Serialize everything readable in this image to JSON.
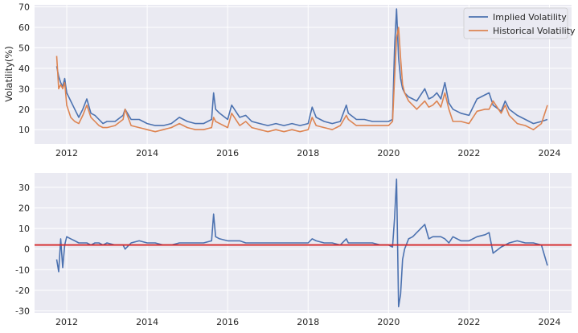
{
  "chart_data": [
    {
      "type": "line",
      "ylabel": "Volatility(%)",
      "xlabel": "",
      "xlim": [
        2011.2,
        2024.55
      ],
      "ylim": [
        3,
        71
      ],
      "xticks": [
        2012,
        2014,
        2016,
        2018,
        2020,
        2022,
        2024
      ],
      "yticks": [
        10,
        20,
        30,
        40,
        50,
        60,
        70
      ],
      "grid": true,
      "legend": "top-right",
      "series": [
        {
          "name": "Implied Volatility",
          "color": "#4c72b0",
          "x": [
            2011.75,
            2011.8,
            2011.85,
            2011.9,
            2011.95,
            2012.0,
            2012.1,
            2012.2,
            2012.3,
            2012.4,
            2012.5,
            2012.6,
            2012.7,
            2012.8,
            2012.9,
            2013.0,
            2013.2,
            2013.4,
            2013.45,
            2013.6,
            2013.8,
            2014.0,
            2014.2,
            2014.4,
            2014.6,
            2014.8,
            2015.0,
            2015.2,
            2015.4,
            2015.6,
            2015.65,
            2015.7,
            2015.8,
            2016.0,
            2016.1,
            2016.3,
            2016.45,
            2016.6,
            2016.8,
            2017.0,
            2017.2,
            2017.4,
            2017.6,
            2017.8,
            2018.0,
            2018.1,
            2018.2,
            2018.4,
            2018.6,
            2018.8,
            2018.95,
            2019.0,
            2019.2,
            2019.4,
            2019.6,
            2019.8,
            2020.0,
            2020.1,
            2020.15,
            2020.2,
            2020.25,
            2020.3,
            2020.35,
            2020.4,
            2020.5,
            2020.6,
            2020.7,
            2020.8,
            2020.9,
            2021.0,
            2021.1,
            2021.2,
            2021.3,
            2021.4,
            2021.5,
            2021.6,
            2021.8,
            2022.0,
            2022.2,
            2022.4,
            2022.5,
            2022.6,
            2022.8,
            2022.9,
            2023.0,
            2023.2,
            2023.4,
            2023.6,
            2023.8,
            2023.95
          ],
          "y": [
            41,
            36,
            33,
            31,
            35,
            28,
            24,
            20,
            16,
            20,
            25,
            18,
            17,
            15,
            13,
            14,
            14,
            17,
            20,
            15,
            15,
            13,
            12,
            12,
            13,
            16,
            14,
            13,
            13,
            15,
            28,
            20,
            18,
            15,
            22,
            16,
            17,
            14,
            13,
            12,
            13,
            12,
            13,
            12,
            13,
            21,
            16,
            14,
            13,
            14,
            22,
            18,
            15,
            15,
            14,
            14,
            14,
            15,
            50,
            69,
            45,
            35,
            30,
            28,
            26,
            25,
            24,
            27,
            30,
            25,
            26,
            28,
            25,
            33,
            23,
            20,
            18,
            17,
            25,
            27,
            28,
            22,
            19,
            24,
            20,
            17,
            15,
            13,
            14,
            15
          ]
        },
        {
          "name": "Historical Volatility",
          "color": "#dd8452",
          "x": [
            2011.75,
            2011.8,
            2011.85,
            2011.9,
            2011.95,
            2012.0,
            2012.1,
            2012.2,
            2012.3,
            2012.4,
            2012.5,
            2012.6,
            2012.7,
            2012.8,
            2012.9,
            2013.0,
            2013.2,
            2013.4,
            2013.45,
            2013.6,
            2013.8,
            2014.0,
            2014.2,
            2014.4,
            2014.6,
            2014.8,
            2015.0,
            2015.2,
            2015.4,
            2015.6,
            2015.65,
            2015.7,
            2015.8,
            2016.0,
            2016.1,
            2016.3,
            2016.45,
            2016.6,
            2016.8,
            2017.0,
            2017.2,
            2017.4,
            2017.6,
            2017.8,
            2018.0,
            2018.1,
            2018.2,
            2018.4,
            2018.6,
            2018.8,
            2018.95,
            2019.0,
            2019.2,
            2019.4,
            2019.6,
            2019.8,
            2020.0,
            2020.1,
            2020.15,
            2020.2,
            2020.25,
            2020.3,
            2020.35,
            2020.4,
            2020.5,
            2020.6,
            2020.7,
            2020.8,
            2020.9,
            2021.0,
            2021.1,
            2021.2,
            2021.3,
            2021.4,
            2021.5,
            2021.6,
            2021.8,
            2022.0,
            2022.2,
            2022.4,
            2022.5,
            2022.6,
            2022.8,
            2022.9,
            2023.0,
            2023.2,
            2023.4,
            2023.6,
            2023.8,
            2023.95
          ],
          "y": [
            46,
            30,
            32,
            30,
            33,
            22,
            16,
            14,
            13,
            17,
            22,
            16,
            14,
            12,
            11,
            11,
            12,
            15,
            20,
            12,
            11,
            10,
            9,
            10,
            11,
            13,
            11,
            10,
            10,
            11,
            16,
            14,
            13,
            11,
            18,
            12,
            14,
            11,
            10,
            9,
            10,
            9,
            10,
            9,
            10,
            16,
            12,
            11,
            10,
            12,
            17,
            15,
            12,
            12,
            12,
            12,
            12,
            14,
            35,
            55,
            60,
            45,
            32,
            28,
            24,
            22,
            20,
            22,
            24,
            21,
            22,
            24,
            21,
            28,
            20,
            14,
            14,
            13,
            19,
            20,
            20,
            24,
            18,
            22,
            17,
            13,
            12,
            10,
            13,
            22
          ]
        }
      ]
    },
    {
      "type": "line",
      "ylabel": "",
      "xlabel": "",
      "xlim": [
        2011.2,
        2024.55
      ],
      "ylim": [
        -31,
        37
      ],
      "xticks": [
        2012,
        2014,
        2016,
        2018,
        2020,
        2022,
        2024
      ],
      "yticks": [
        -30,
        -20,
        -10,
        0,
        10,
        20,
        30
      ],
      "grid": true,
      "reference_line": {
        "y": 2,
        "color": "#d62728"
      },
      "series": [
        {
          "color": "#4c72b0",
          "x": [
            2011.75,
            2011.8,
            2011.85,
            2011.9,
            2011.95,
            2012.0,
            2012.1,
            2012.2,
            2012.3,
            2012.4,
            2012.5,
            2012.6,
            2012.7,
            2012.8,
            2012.9,
            2013.0,
            2013.2,
            2013.4,
            2013.45,
            2013.6,
            2013.8,
            2014.0,
            2014.2,
            2014.4,
            2014.6,
            2014.8,
            2015.0,
            2015.2,
            2015.4,
            2015.6,
            2015.65,
            2015.7,
            2015.8,
            2016.0,
            2016.1,
            2016.3,
            2016.45,
            2016.6,
            2016.8,
            2017.0,
            2017.2,
            2017.4,
            2017.6,
            2017.8,
            2018.0,
            2018.1,
            2018.2,
            2018.4,
            2018.6,
            2018.8,
            2018.95,
            2019.0,
            2019.2,
            2019.4,
            2019.6,
            2019.8,
            2020.0,
            2020.1,
            2020.15,
            2020.2,
            2020.25,
            2020.3,
            2020.35,
            2020.4,
            2020.5,
            2020.6,
            2020.7,
            2020.8,
            2020.9,
            2021.0,
            2021.1,
            2021.2,
            2021.3,
            2021.4,
            2021.5,
            2021.6,
            2021.8,
            2022.0,
            2022.2,
            2022.4,
            2022.5,
            2022.6,
            2022.8,
            2022.9,
            2023.0,
            2023.2,
            2023.4,
            2023.6,
            2023.8,
            2023.95
          ],
          "y": [
            -5,
            -11,
            5,
            -9,
            2,
            6,
            5,
            4,
            3,
            3,
            3,
            2,
            3,
            3,
            2,
            3,
            2,
            2,
            0,
            3,
            4,
            3,
            3,
            2,
            2,
            3,
            3,
            3,
            3,
            4,
            17,
            6,
            5,
            4,
            4,
            4,
            3,
            3,
            3,
            3,
            3,
            3,
            3,
            3,
            3,
            5,
            4,
            3,
            3,
            2,
            5,
            3,
            3,
            3,
            3,
            2,
            2,
            1,
            15,
            34,
            -28,
            -22,
            -5,
            0,
            5,
            6,
            8,
            10,
            12,
            5,
            6,
            6,
            6,
            5,
            3,
            6,
            4,
            4,
            6,
            7,
            8,
            -2,
            1,
            2,
            3,
            4,
            3,
            3,
            2,
            -8
          ]
        }
      ]
    }
  ]
}
